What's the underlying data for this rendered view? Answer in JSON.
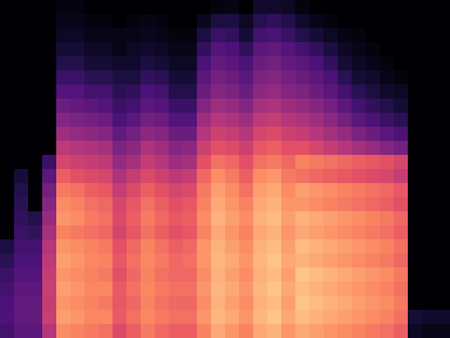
{
  "chart_data": {
    "type": "heatmap",
    "color": "magma",
    "tick_labels": false,
    "color_range": [
      0,
      100
    ],
    "cells": [
      [
        0,
        0,
        0,
        0,
        2,
        2,
        0,
        0,
        0,
        0,
        0,
        0,
        0,
        0,
        0,
        2,
        3,
        0,
        8,
        8,
        6,
        2,
        0,
        0,
        0,
        0,
        0,
        0,
        0,
        0,
        0,
        0
      ],
      [
        0,
        0,
        0,
        0,
        4,
        4,
        2,
        2,
        0,
        2,
        3,
        2,
        0,
        0,
        5,
        12,
        12,
        6,
        15,
        18,
        14,
        8,
        4,
        2,
        0,
        0,
        0,
        0,
        0,
        0,
        0,
        0
      ],
      [
        0,
        0,
        0,
        0,
        6,
        6,
        4,
        4,
        3,
        4,
        5,
        4,
        2,
        2,
        12,
        20,
        18,
        10,
        22,
        24,
        20,
        14,
        10,
        6,
        3,
        2,
        0,
        0,
        0,
        0,
        0,
        0
      ],
      [
        0,
        0,
        0,
        0,
        10,
        10,
        6,
        6,
        4,
        6,
        8,
        6,
        4,
        4,
        18,
        26,
        24,
        18,
        28,
        30,
        26,
        22,
        18,
        12,
        6,
        4,
        2,
        0,
        0,
        0,
        0,
        0
      ],
      [
        0,
        0,
        0,
        0,
        14,
        14,
        10,
        10,
        8,
        8,
        12,
        10,
        6,
        6,
        24,
        30,
        28,
        24,
        32,
        34,
        30,
        28,
        24,
        18,
        10,
        6,
        4,
        2,
        0,
        0,
        0,
        0
      ],
      [
        0,
        0,
        0,
        0,
        20,
        20,
        16,
        16,
        12,
        12,
        18,
        16,
        10,
        10,
        28,
        34,
        32,
        28,
        36,
        38,
        34,
        32,
        28,
        24,
        16,
        10,
        8,
        4,
        2,
        0,
        0,
        0
      ],
      [
        0,
        0,
        0,
        0,
        26,
        26,
        22,
        22,
        16,
        18,
        24,
        22,
        14,
        14,
        32,
        38,
        36,
        32,
        40,
        42,
        38,
        36,
        32,
        28,
        22,
        16,
        12,
        8,
        6,
        0,
        0,
        0
      ],
      [
        0,
        0,
        0,
        0,
        32,
        30,
        28,
        26,
        20,
        22,
        28,
        26,
        20,
        20,
        38,
        44,
        42,
        38,
        46,
        48,
        44,
        42,
        38,
        34,
        28,
        22,
        18,
        14,
        10,
        0,
        0,
        0
      ],
      [
        0,
        0,
        0,
        0,
        38,
        36,
        34,
        32,
        24,
        28,
        34,
        32,
        26,
        26,
        44,
        50,
        48,
        44,
        52,
        54,
        50,
        48,
        44,
        40,
        34,
        28,
        24,
        20,
        16,
        0,
        0,
        0
      ],
      [
        0,
        0,
        0,
        0,
        44,
        42,
        40,
        38,
        30,
        34,
        40,
        38,
        32,
        32,
        50,
        56,
        54,
        50,
        58,
        60,
        56,
        54,
        50,
        46,
        42,
        36,
        32,
        28,
        24,
        0,
        0,
        0
      ],
      [
        0,
        0,
        0,
        0,
        52,
        50,
        48,
        46,
        36,
        40,
        48,
        44,
        38,
        40,
        56,
        62,
        60,
        56,
        64,
        66,
        62,
        62,
        58,
        54,
        50,
        46,
        42,
        38,
        34,
        0,
        0,
        0
      ],
      [
        0,
        0,
        0,
        20,
        58,
        56,
        54,
        52,
        42,
        46,
        54,
        50,
        44,
        46,
        62,
        70,
        68,
        62,
        70,
        72,
        68,
        74,
        72,
        70,
        68,
        66,
        64,
        62,
        58,
        0,
        0,
        0
      ],
      [
        0,
        10,
        0,
        28,
        66,
        62,
        60,
        58,
        48,
        54,
        60,
        56,
        52,
        54,
        68,
        76,
        72,
        66,
        76,
        78,
        72,
        70,
        68,
        66,
        64,
        62,
        60,
        58,
        54,
        0,
        0,
        0
      ],
      [
        0,
        14,
        0,
        34,
        72,
        70,
        66,
        64,
        54,
        60,
        66,
        62,
        58,
        60,
        72,
        80,
        76,
        70,
        80,
        82,
        76,
        80,
        78,
        76,
        74,
        72,
        70,
        68,
        64,
        0,
        0,
        0
      ],
      [
        0,
        16,
        0,
        38,
        76,
        74,
        70,
        68,
        58,
        64,
        70,
        66,
        62,
        64,
        74,
        82,
        78,
        74,
        82,
        84,
        78,
        78,
        76,
        74,
        72,
        70,
        68,
        66,
        62,
        0,
        0,
        0
      ],
      [
        0,
        18,
        14,
        42,
        78,
        76,
        72,
        70,
        60,
        66,
        72,
        68,
        64,
        66,
        76,
        84,
        80,
        76,
        84,
        86,
        80,
        84,
        82,
        80,
        78,
        76,
        74,
        72,
        68,
        0,
        0,
        0
      ],
      [
        0,
        20,
        18,
        46,
        74,
        72,
        70,
        68,
        58,
        64,
        70,
        66,
        62,
        64,
        74,
        82,
        78,
        74,
        82,
        84,
        78,
        82,
        80,
        78,
        76,
        74,
        72,
        70,
        66,
        0,
        0,
        0
      ],
      [
        12,
        22,
        22,
        50,
        78,
        76,
        74,
        72,
        62,
        68,
        74,
        70,
        66,
        68,
        78,
        84,
        80,
        76,
        84,
        86,
        80,
        86,
        84,
        82,
        80,
        78,
        76,
        74,
        70,
        0,
        0,
        0
      ],
      [
        16,
        24,
        24,
        52,
        80,
        78,
        75,
        74,
        64,
        70,
        75,
        72,
        68,
        70,
        78,
        85,
        82,
        78,
        85,
        88,
        82,
        84,
        82,
        80,
        78,
        76,
        74,
        72,
        68,
        0,
        0,
        0
      ],
      [
        20,
        26,
        26,
        54,
        78,
        76,
        74,
        72,
        62,
        68,
        74,
        70,
        68,
        68,
        76,
        84,
        80,
        76,
        84,
        86,
        80,
        88,
        86,
        84,
        82,
        80,
        78,
        76,
        72,
        0,
        0,
        0
      ],
      [
        22,
        28,
        28,
        55,
        80,
        78,
        75,
        75,
        65,
        70,
        75,
        72,
        70,
        70,
        78,
        85,
        82,
        78,
        85,
        88,
        82,
        86,
        84,
        82,
        80,
        78,
        76,
        74,
        70,
        0,
        0,
        0
      ],
      [
        24,
        30,
        30,
        54,
        78,
        76,
        74,
        72,
        64,
        68,
        74,
        70,
        68,
        68,
        76,
        84,
        80,
        76,
        84,
        86,
        80,
        88,
        86,
        84,
        82,
        80,
        78,
        76,
        72,
        0,
        0,
        0
      ],
      [
        25,
        30,
        30,
        55,
        80,
        78,
        75,
        75,
        65,
        70,
        75,
        72,
        70,
        70,
        78,
        85,
        82,
        78,
        85,
        88,
        82,
        86,
        84,
        82,
        80,
        78,
        76,
        74,
        70,
        10,
        8,
        8
      ],
      [
        22,
        28,
        28,
        50,
        76,
        74,
        72,
        70,
        60,
        66,
        72,
        68,
        66,
        66,
        74,
        82,
        78,
        74,
        82,
        84,
        78,
        82,
        80,
        78,
        76,
        74,
        72,
        70,
        66,
        6,
        4,
        4
      ]
    ]
  }
}
